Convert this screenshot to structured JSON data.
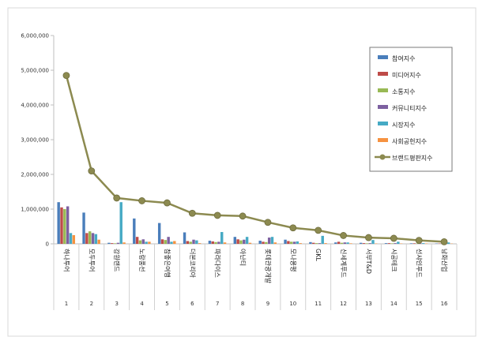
{
  "chart_data": {
    "type": "bar",
    "categories": [
      "하나투어",
      "모두투어",
      "강원랜드",
      "노랑풍선",
      "참좋은여행",
      "더본코리아",
      "파라다이스",
      "아난티",
      "롯데관광개발",
      "모나용평",
      "GKL",
      "신세계푸드",
      "서부T&D",
      "시공테크",
      "선샤인푸드",
      "남화산업"
    ],
    "ranks": [
      "1",
      "2",
      "3",
      "4",
      "5",
      "6",
      "7",
      "8",
      "9",
      "10",
      "11",
      "12",
      "13",
      "14",
      "15",
      "16"
    ],
    "yticks": [
      "0",
      "1,000,000",
      "2,000,000",
      "3,000,000",
      "4,000,000",
      "5,000,000",
      "6,000,000"
    ],
    "ylim": [
      0,
      6000000
    ],
    "series": [
      {
        "name": "참여지수",
        "color": "#4A7EBB",
        "values": [
          1200000,
          900000,
          30000,
          730000,
          600000,
          330000,
          90000,
          200000,
          90000,
          120000,
          50000,
          40000,
          30000,
          20000,
          15000,
          10000
        ]
      },
      {
        "name": "미디어지수",
        "color": "#BE4B48",
        "values": [
          1050000,
          310000,
          20000,
          200000,
          130000,
          80000,
          70000,
          130000,
          60000,
          80000,
          30000,
          60000,
          20000,
          20000,
          15000,
          10000
        ]
      },
      {
        "name": "소통지수",
        "color": "#98B954",
        "values": [
          1000000,
          360000,
          15000,
          100000,
          110000,
          60000,
          50000,
          100000,
          50000,
          60000,
          20000,
          30000,
          15000,
          15000,
          10000,
          8000
        ]
      },
      {
        "name": "커뮤니티지수",
        "color": "#7D60A0",
        "values": [
          1080000,
          310000,
          30000,
          130000,
          200000,
          120000,
          60000,
          120000,
          180000,
          60000,
          20000,
          40000,
          20000,
          20000,
          15000,
          10000
        ]
      },
      {
        "name": "시장지수",
        "color": "#46AAC4",
        "values": [
          310000,
          280000,
          1200000,
          60000,
          60000,
          100000,
          340000,
          200000,
          200000,
          70000,
          230000,
          40000,
          110000,
          60000,
          20000,
          40000
        ]
      },
      {
        "name": "사회공헌지수",
        "color": "#F69240",
        "values": [
          250000,
          120000,
          40000,
          60000,
          80000,
          20000,
          40000,
          30000,
          40000,
          20000,
          20000,
          15000,
          10000,
          10000,
          10000,
          8000
        ]
      }
    ],
    "line": {
      "name": "브랜드평판지수",
      "color": "#8C8A50",
      "values": [
        4850000,
        2100000,
        1320000,
        1240000,
        1180000,
        880000,
        820000,
        800000,
        620000,
        460000,
        390000,
        240000,
        180000,
        160000,
        100000,
        60000
      ]
    },
    "legend_position": "right",
    "grid": false
  }
}
